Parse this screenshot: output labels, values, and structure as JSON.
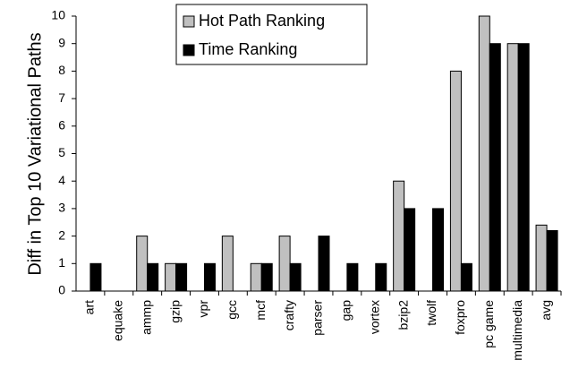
{
  "chart_data": {
    "type": "bar",
    "y_label": "Diff in Top 10 Variational Paths",
    "categories": [
      "art",
      "equake",
      "ammp",
      "gzip",
      "vpr",
      "gcc",
      "mcf",
      "crafty",
      "parser",
      "gap",
      "vortex",
      "bzip2",
      "twolf",
      "foxpro",
      "pc game",
      "multimedia",
      "avg"
    ],
    "series": [
      {
        "name": "Hot Path Ranking",
        "color": "#c0c0c0",
        "values": [
          0,
          0,
          2,
          1,
          0,
          2,
          1,
          2,
          0,
          0,
          0,
          4,
          0,
          8,
          10,
          9,
          2.4
        ]
      },
      {
        "name": "Time Ranking",
        "color": "#000000",
        "values": [
          1,
          0,
          1,
          1,
          1,
          0,
          1,
          1,
          2,
          1,
          1,
          3,
          3,
          1,
          9,
          9,
          2.2
        ]
      }
    ],
    "ylim": [
      0,
      10
    ],
    "yticks": [
      0,
      1,
      2,
      3,
      4,
      5,
      6,
      7,
      8,
      9,
      10
    ],
    "grid": false,
    "legend": "top"
  }
}
